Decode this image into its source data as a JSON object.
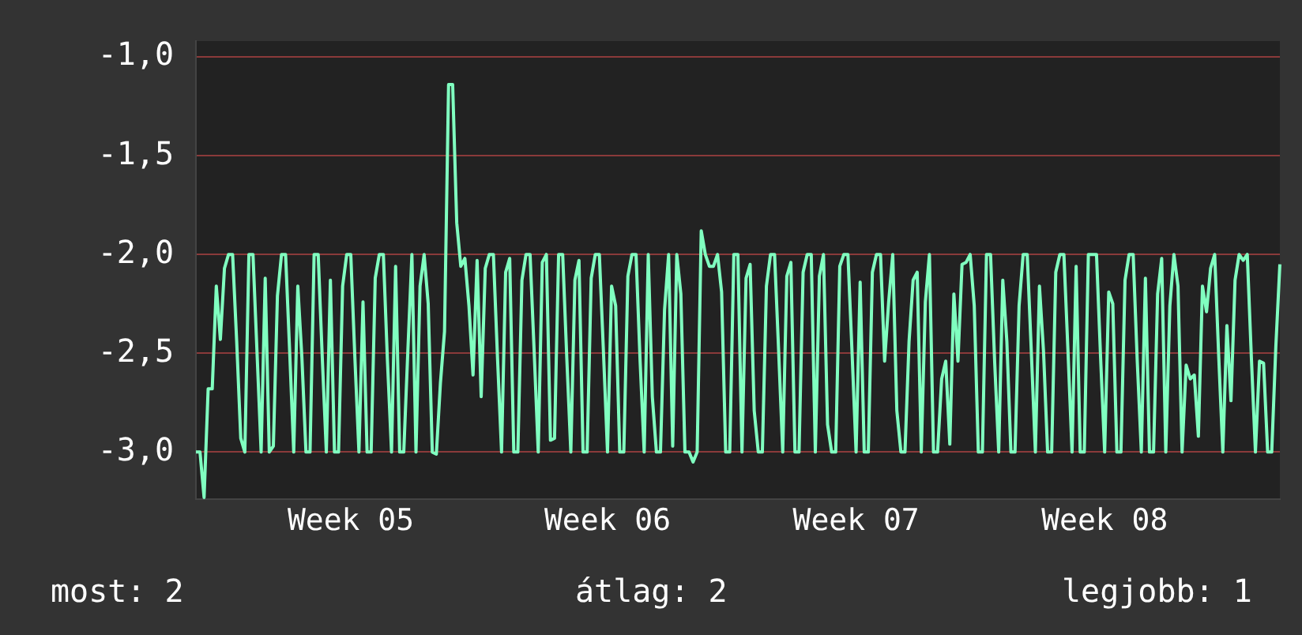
{
  "chart_data": {
    "type": "line",
    "ylim": [
      -3.24,
      -0.92
    ],
    "categories": [
      null,
      null,
      null,
      null,
      null,
      null,
      null,
      null,
      null,
      null,
      null,
      null,
      null,
      null,
      null,
      null,
      null,
      null,
      null,
      null,
      null,
      null,
      null,
      null,
      null,
      null,
      null,
      null,
      null,
      null,
      null,
      null,
      null,
      null,
      null,
      null,
      null,
      null,
      "Week 05",
      null,
      null,
      null,
      null,
      null,
      null,
      null,
      null,
      null,
      null,
      null,
      null,
      null,
      null,
      null,
      null,
      null,
      null,
      null,
      null,
      null,
      null,
      null,
      null,
      null,
      null,
      null,
      null,
      null,
      null,
      null,
      null,
      null,
      null,
      null,
      null,
      null,
      null,
      null,
      null,
      null,
      null,
      null,
      null,
      null,
      null,
      null,
      null,
      null,
      null,
      null,
      null,
      null,
      null,
      null,
      null,
      null,
      null,
      null,
      null,
      null,
      null,
      "Week 06",
      null,
      null,
      null,
      null,
      null,
      null,
      null,
      null,
      null,
      null,
      null,
      null,
      null,
      null,
      null,
      null,
      null,
      null,
      null,
      null,
      null,
      null,
      null,
      null,
      null,
      null,
      null,
      null,
      null,
      null,
      null,
      null,
      null,
      null,
      null,
      null,
      null,
      null,
      null,
      null,
      null,
      null,
      null,
      null,
      null,
      null,
      null,
      null,
      null,
      null,
      null,
      null,
      null,
      null,
      null,
      null,
      null,
      null,
      null,
      null,
      "Week 07",
      null,
      null,
      null,
      null,
      null,
      null,
      null,
      null,
      null,
      null,
      null,
      null,
      null,
      null,
      null,
      null,
      null,
      null,
      null,
      null,
      null,
      null,
      null,
      null,
      null,
      null,
      null,
      null,
      null,
      null,
      null,
      null,
      null,
      null,
      null,
      null,
      null,
      null,
      null,
      null,
      null,
      null,
      null,
      null,
      null,
      null,
      null,
      null,
      null,
      null,
      null,
      null,
      null,
      null,
      null,
      null,
      null,
      null,
      null,
      null,
      "Week 08",
      null,
      null,
      null,
      null,
      null,
      null,
      null,
      null,
      null,
      null,
      null,
      null,
      null,
      null,
      null,
      null,
      null,
      null,
      null,
      null,
      null,
      null,
      null,
      null,
      null,
      null,
      null,
      null,
      null,
      null,
      null,
      null,
      null,
      null,
      null,
      null,
      null,
      null,
      null,
      null,
      null,
      null,
      null
    ],
    "yticks": [
      {
        "value": -1,
        "label": "-1,0"
      },
      {
        "value": -1.5,
        "label": "-1,5"
      },
      {
        "value": -2,
        "label": "-2,0"
      },
      {
        "value": -2.5,
        "label": "-2,5"
      },
      {
        "value": -3,
        "label": "-3,0"
      }
    ],
    "grid": "y",
    "legend": false,
    "marker": "none",
    "line_style": "solid",
    "annotations": [
      "most: 2",
      "átlag: 2",
      "legjobb: 1"
    ],
    "series": [
      {
        "color": "#80ffc0",
        "values": [
          -3,
          -3,
          -3.23,
          -2.68,
          -2.68,
          -2.16,
          -2.43,
          -2.07,
          -2,
          -2,
          -2.44,
          -2.93,
          -3,
          -2,
          -2,
          -2.5,
          -3,
          -2.12,
          -3,
          -2.97,
          -2.21,
          -2,
          -2,
          -2.49,
          -3,
          -2.16,
          -2.52,
          -3,
          -3,
          -2,
          -2,
          -2.52,
          -3,
          -2.13,
          -3,
          -3,
          -2.16,
          -2,
          -2,
          -2.52,
          -3,
          -2.24,
          -3,
          -3,
          -2.12,
          -2,
          -2,
          -2.54,
          -3,
          -2.06,
          -3,
          -3,
          -2.49,
          -2,
          -3,
          -2.16,
          -2,
          -2.25,
          -3,
          -3.01,
          -2.65,
          -2.39,
          -1.14,
          -1.14,
          -1.84,
          -2.06,
          -2.02,
          -2.26,
          -2.61,
          -2.03,
          -2.72,
          -2.07,
          -2,
          -2,
          -2.52,
          -3,
          -2.09,
          -2.02,
          -3,
          -3,
          -2.13,
          -2,
          -2,
          -2.49,
          -3,
          -2.04,
          -2,
          -2.94,
          -2.93,
          -2,
          -2,
          -2.52,
          -3,
          -2.13,
          -2.03,
          -3,
          -3,
          -2.12,
          -2,
          -2,
          -2.49,
          -3,
          -2.16,
          -2.26,
          -3,
          -3,
          -2.11,
          -2,
          -2,
          -2.54,
          -3,
          -2,
          -2.72,
          -3,
          -3,
          -2.28,
          -2,
          -2.97,
          -2,
          -2.2,
          -3,
          -3,
          -3.05,
          -3,
          -1.88,
          -2,
          -2.06,
          -2.06,
          -2,
          -2.19,
          -3,
          -3,
          -2,
          -2,
          -3,
          -2.12,
          -2.05,
          -2.79,
          -3,
          -3,
          -2.16,
          -2,
          -2,
          -2.49,
          -3,
          -2.11,
          -2.04,
          -3,
          -3,
          -2.09,
          -2,
          -2,
          -3,
          -2.11,
          -2,
          -2.86,
          -3,
          -3,
          -2.06,
          -2,
          -2,
          -2.49,
          -3,
          -2.14,
          -3,
          -3,
          -2.09,
          -2,
          -2,
          -2.54,
          -2.24,
          -2,
          -2.79,
          -3,
          -3,
          -2.44,
          -2.13,
          -2.09,
          -3,
          -2.24,
          -2,
          -3,
          -3,
          -2.63,
          -2.54,
          -2.96,
          -2.2,
          -2.54,
          -2.05,
          -2.04,
          -2,
          -2.26,
          -3,
          -3,
          -2,
          -2,
          -2.54,
          -3,
          -2.13,
          -2.44,
          -3,
          -3,
          -2.26,
          -2,
          -2,
          -2.49,
          -3,
          -2.16,
          -2.49,
          -3,
          -3,
          -2.09,
          -2,
          -2,
          -2.49,
          -3,
          -2.06,
          -3,
          -3,
          -2,
          -2,
          -2,
          -2.52,
          -3,
          -2.19,
          -2.25,
          -3,
          -3,
          -2.13,
          -2,
          -2,
          -2.54,
          -3,
          -2.12,
          -3,
          -3,
          -2.2,
          -2.02,
          -3,
          -2.26,
          -2,
          -2.16,
          -3,
          -2.56,
          -2.63,
          -2.61,
          -2.92,
          -2.16,
          -2.29,
          -2.07,
          -2,
          -2.52,
          -3,
          -2.36,
          -2.74,
          -2.13,
          -2,
          -2.03,
          -2,
          -2.52,
          -3,
          -2.54,
          -2.55,
          -3,
          -3,
          -2.47,
          -2.05
        ]
      }
    ]
  }
}
